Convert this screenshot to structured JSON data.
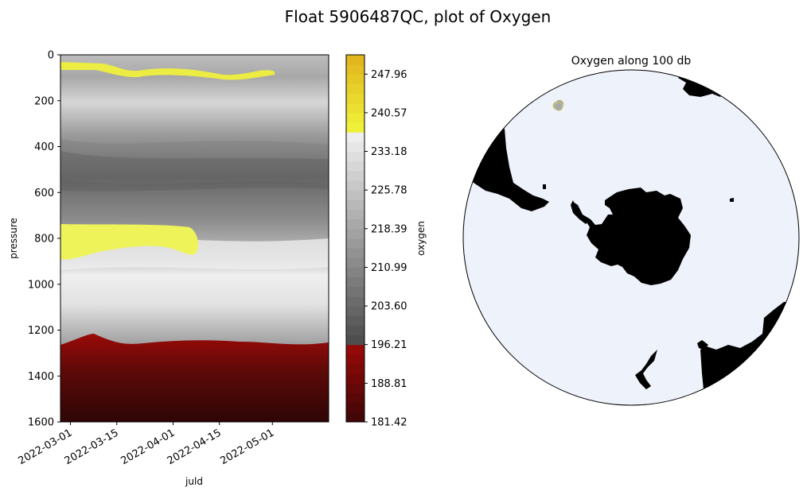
{
  "suptitle": "Float 5906487QC, plot of Oxygen",
  "chart_data": [
    {
      "type": "heatmap",
      "title": "",
      "xlabel": "juld",
      "ylabel": "pressure",
      "x_ticks": [
        "2022-03-01",
        "2022-03-15",
        "2022-04-01",
        "2022-04-15",
        "2022-05-01"
      ],
      "xlim": [
        "2022-02-26",
        "2022-05-18"
      ],
      "ylim": [
        1600,
        0
      ],
      "y_ticks": [
        0,
        200,
        400,
        600,
        800,
        1000,
        1200,
        1400,
        1600
      ],
      "colorbar": {
        "label": "oxygen",
        "range": [
          181.42,
          251.65
        ],
        "ticks": [
          181.42,
          188.81,
          196.21,
          203.6,
          210.99,
          218.39,
          225.78,
          233.18,
          240.57,
          247.96
        ],
        "segments": [
          {
            "from": 181.42,
            "to": 196.21,
            "color_low": "#3d0606",
            "color_high": "#9a0a08"
          },
          {
            "from": 196.21,
            "to": 237.0,
            "color_low": "#4a4a4a",
            "color_high": "#f2f2f2"
          },
          {
            "from": 237.0,
            "to": 251.65,
            "color_low": "#f0f53a",
            "color_high": "#e0b21c"
          }
        ]
      },
      "features": [
        {
          "name": "surface high-oxygen band",
          "pressure_range": [
            30,
            100
          ],
          "oxygen": 244
        },
        {
          "name": "intermediate high-oxygen patch",
          "date_range": [
            "2022-02-26",
            "2022-03-25"
          ],
          "pressure_range": [
            730,
            880
          ],
          "oxygen": 238
        },
        {
          "name": "deep low-oxygen layer",
          "pressure_range": [
            1240,
            1600
          ],
          "oxygen_range": [
            182,
            196
          ]
        }
      ],
      "grid": false,
      "legend": "none"
    },
    {
      "type": "map",
      "title": "Oxygen along 100 db",
      "projection": "south-polar stereographic",
      "ocean_color": "#edf2fb",
      "land_color": "#000000",
      "points": [
        {
          "description": "float positions",
          "color": "#a8a8a8",
          "count": 3
        }
      ]
    }
  ]
}
